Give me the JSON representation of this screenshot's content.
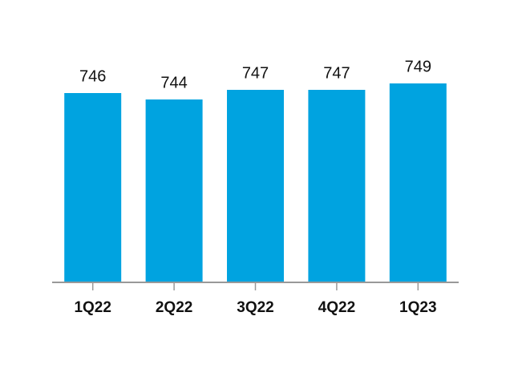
{
  "chart_data": {
    "type": "bar",
    "categories": [
      "1Q22",
      "2Q22",
      "3Q22",
      "4Q22",
      "1Q23"
    ],
    "values": [
      746,
      744,
      747,
      747,
      749
    ],
    "color": "#00a3e0",
    "ylim": [
      687,
      765
    ],
    "grid": false
  }
}
